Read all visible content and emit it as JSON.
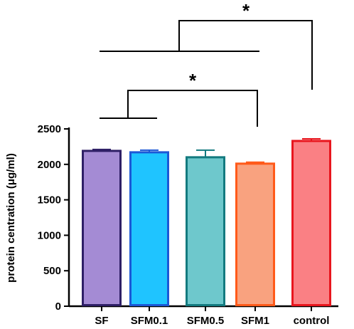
{
  "chart_data": {
    "type": "bar",
    "title": "",
    "xlabel": "",
    "ylabel": "protein centration (μg/ml)",
    "ylim": [
      0,
      2500
    ],
    "yticks": [
      "0",
      "500",
      "1000",
      "1500",
      "2000",
      "2500"
    ],
    "categories": [
      "SF",
      "SFM0.1",
      "SFM0.5",
      "SFM1",
      "control"
    ],
    "values": [
      2190,
      2170,
      2100,
      2010,
      2330
    ],
    "errors": [
      20,
      30,
      100,
      20,
      30
    ],
    "fill_colors": [
      "#a48bd4",
      "#1fc4ff",
      "#6ec8cc",
      "#f9a27f",
      "#fa8084"
    ],
    "edge_colors": [
      "#2e1f66",
      "#1c58d6",
      "#137a7f",
      "#ff5a1a",
      "#e8161e"
    ],
    "grid": false,
    "legend": "none",
    "significance": [
      {
        "label": "*",
        "group_left": [
          "SF",
          "SFM0.1"
        ],
        "group_right": "SFM1"
      },
      {
        "label": "*",
        "group_left": [
          "SF",
          "SFM0.1",
          "SFM0.5",
          "SFM1"
        ],
        "group_right": "control"
      }
    ]
  }
}
